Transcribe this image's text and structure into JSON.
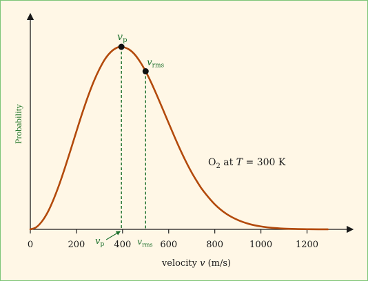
{
  "chart_data": {
    "type": "line",
    "xlabel_prefix": "velocity ",
    "xlabel_var": "v",
    "xlabel_suffix": " (m/s)",
    "ylabel": "Probability",
    "xlim": [
      0,
      1400
    ],
    "ylim": [
      0,
      1.05
    ],
    "x_ticks": [
      0,
      200,
      400,
      600,
      800,
      1000,
      1200
    ],
    "grid": false,
    "curve_color": "#b34a0c",
    "marker_color": "#111111",
    "dash_color": "#1b6e2a",
    "series": [
      {
        "x": [
          0,
          25,
          50,
          75,
          100,
          125,
          150,
          175,
          200,
          225,
          250,
          275,
          300,
          325,
          350,
          375,
          395,
          425,
          450,
          475,
          500,
          525,
          550,
          575,
          600,
          625,
          650,
          675,
          700,
          725,
          750,
          800,
          850,
          900,
          950,
          1000,
          1050,
          1100,
          1150,
          1200,
          1250,
          1290
        ],
        "y": [
          0.0,
          0.011,
          0.043,
          0.093,
          0.162,
          0.244,
          0.337,
          0.436,
          0.537,
          0.636,
          0.728,
          0.81,
          0.879,
          0.935,
          0.973,
          0.995,
          1.0,
          0.988,
          0.962,
          0.92,
          0.866,
          0.802,
          0.731,
          0.657,
          0.582,
          0.508,
          0.437,
          0.371,
          0.311,
          0.258,
          0.211,
          0.137,
          0.085,
          0.051,
          0.029,
          0.016,
          0.0084,
          0.0042,
          0.002,
          0.0009,
          0.0004,
          0.0002
        ]
      }
    ],
    "markers": [
      {
        "id": "vp",
        "x": 395,
        "y": 1.0,
        "var": "v",
        "sub": "p"
      },
      {
        "id": "vrms",
        "x": 500,
        "y": 0.866,
        "var": "v",
        "sub": "rms"
      }
    ],
    "annotation": {
      "o": "O",
      "sub": "2",
      "mid": " at ",
      "var": "T",
      "rest": " = 300 K"
    }
  }
}
